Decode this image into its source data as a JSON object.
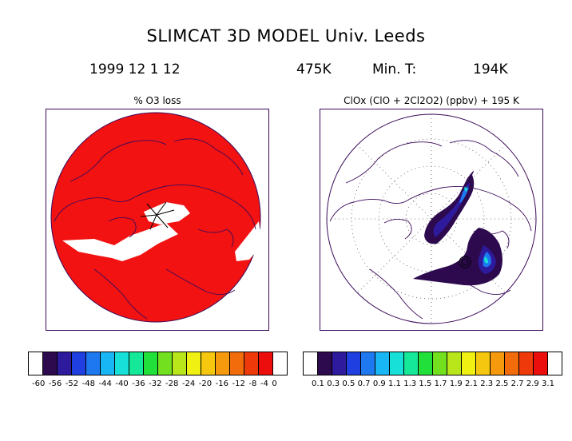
{
  "header": {
    "title": "SLIMCAT 3D MODEL    Univ. Leeds",
    "date": "1999 12   1  12",
    "level": "475K",
    "min_t_label": "Min. T:",
    "min_t_value": "194K"
  },
  "panels": {
    "left": {
      "title": "% O3 loss"
    },
    "right": {
      "title": "ClOx (ClO + 2Cl2O2) (ppbv)  + 195 K"
    }
  },
  "colorbars": {
    "left": {
      "colors": [
        "#ffffff",
        "#2d0a4e",
        "#2e1a9c",
        "#1f3fe0",
        "#1e78f0",
        "#19b6f5",
        "#17e0d9",
        "#16e89a",
        "#22e03a",
        "#72e01e",
        "#b8e61a",
        "#f0f012",
        "#f5c80f",
        "#f59a0d",
        "#f26c0c",
        "#ee3a0b",
        "#ec0d0d",
        "#ffffff"
      ],
      "labels": [
        "-60",
        "-56",
        "-52",
        "-48",
        "-44",
        "-40",
        "-36",
        "-32",
        "-28",
        "-24",
        "-20",
        "-16",
        "-12",
        "-8",
        "-4",
        "0"
      ]
    },
    "right": {
      "colors": [
        "#ffffff",
        "#2d0a4e",
        "#2e1a9c",
        "#1f3fe0",
        "#1e78f0",
        "#19b6f5",
        "#17e0d9",
        "#16e89a",
        "#22e03a",
        "#72e01e",
        "#b8e61a",
        "#f0f012",
        "#f5c80f",
        "#f59a0d",
        "#f26c0c",
        "#ee3a0b",
        "#ec0d0d",
        "#ffffff"
      ],
      "labels": [
        "0.1",
        "0.3",
        "0.5",
        "0.7",
        "0.9",
        "1.1",
        "1.3",
        "1.5",
        "1.7",
        "1.9",
        "2.1",
        "2.3",
        "2.5",
        "2.7",
        "2.9",
        "3.1"
      ]
    }
  }
}
